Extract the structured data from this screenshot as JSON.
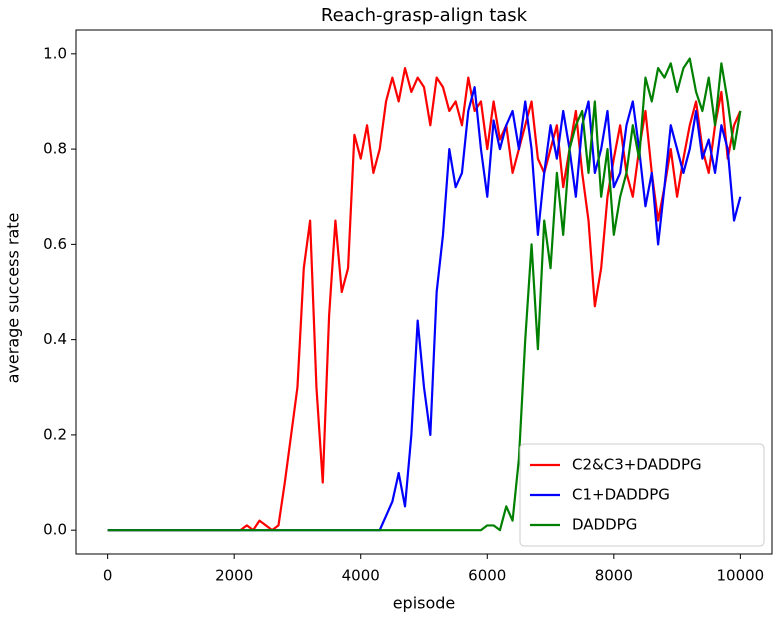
{
  "chart_data": {
    "type": "line",
    "title": "Reach-grasp-align task",
    "xlabel": "episode",
    "ylabel": "average success rate",
    "xlim": [
      -500,
      10500
    ],
    "ylim": [
      -0.05,
      1.05
    ],
    "xticks": [
      0,
      2000,
      4000,
      6000,
      8000,
      10000
    ],
    "yticks": [
      {
        "value": 0,
        "label": "0.0"
      },
      {
        "value": 0.2,
        "label": "0.2"
      },
      {
        "value": 0.4,
        "label": "0.4"
      },
      {
        "value": 0.6,
        "label": "0.6"
      },
      {
        "value": 0.8,
        "label": "0.8"
      },
      {
        "value": 1,
        "label": "1.0"
      }
    ],
    "legend": "lower right",
    "x": [
      0,
      100,
      200,
      300,
      400,
      500,
      600,
      700,
      800,
      900,
      1000,
      1100,
      1200,
      1300,
      1400,
      1500,
      1600,
      1700,
      1800,
      1900,
      2000,
      2100,
      2200,
      2300,
      2400,
      2500,
      2600,
      2700,
      2800,
      2900,
      3000,
      3100,
      3200,
      3300,
      3400,
      3500,
      3600,
      3700,
      3800,
      3900,
      4000,
      4100,
      4200,
      4300,
      4400,
      4500,
      4600,
      4700,
      4800,
      4900,
      5000,
      5100,
      5200,
      5300,
      5400,
      5500,
      5600,
      5700,
      5800,
      5900,
      6000,
      6100,
      6200,
      6300,
      6400,
      6500,
      6600,
      6700,
      6800,
      6900,
      7000,
      7100,
      7200,
      7300,
      7400,
      7500,
      7600,
      7700,
      7800,
      7900,
      8000,
      8100,
      8200,
      8300,
      8400,
      8500,
      8600,
      8700,
      8800,
      8900,
      9000,
      9100,
      9200,
      9300,
      9400,
      9500,
      9600,
      9700,
      9800,
      9900,
      10000
    ],
    "series": [
      {
        "name": "C2&C3+DADDPG",
        "color": "#ff0000",
        "values": [
          0,
          0,
          0,
          0,
          0,
          0,
          0,
          0,
          0,
          0,
          0,
          0,
          0,
          0,
          0,
          0,
          0,
          0,
          0,
          0,
          0,
          0,
          0.01,
          0,
          0.02,
          0.01,
          0,
          0.01,
          0.1,
          0.2,
          0.3,
          0.55,
          0.65,
          0.3,
          0.1,
          0.45,
          0.65,
          0.5,
          0.55,
          0.83,
          0.78,
          0.85,
          0.75,
          0.8,
          0.9,
          0.95,
          0.9,
          0.97,
          0.92,
          0.95,
          0.93,
          0.85,
          0.95,
          0.93,
          0.88,
          0.9,
          0.85,
          0.95,
          0.88,
          0.9,
          0.8,
          0.9,
          0.82,
          0.85,
          0.75,
          0.8,
          0.85,
          0.9,
          0.78,
          0.75,
          0.8,
          0.85,
          0.72,
          0.8,
          0.88,
          0.75,
          0.65,
          0.47,
          0.55,
          0.7,
          0.78,
          0.85,
          0.75,
          0.7,
          0.8,
          0.88,
          0.75,
          0.65,
          0.72,
          0.8,
          0.7,
          0.78,
          0.85,
          0.9,
          0.8,
          0.75,
          0.85,
          0.92,
          0.78,
          0.85,
          0.88
        ]
      },
      {
        "name": "C1+DADDPG",
        "color": "#0000ff",
        "values": [
          0,
          0,
          0,
          0,
          0,
          0,
          0,
          0,
          0,
          0,
          0,
          0,
          0,
          0,
          0,
          0,
          0,
          0,
          0,
          0,
          0,
          0,
          0,
          0,
          0,
          0,
          0,
          0,
          0,
          0,
          0,
          0,
          0,
          0,
          0,
          0,
          0,
          0,
          0,
          0,
          0,
          0,
          0,
          0,
          0.03,
          0.06,
          0.12,
          0.05,
          0.2,
          0.44,
          0.3,
          0.2,
          0.5,
          0.62,
          0.8,
          0.72,
          0.75,
          0.88,
          0.93,
          0.8,
          0.7,
          0.86,
          0.8,
          0.85,
          0.88,
          0.8,
          0.9,
          0.8,
          0.62,
          0.75,
          0.85,
          0.78,
          0.88,
          0.8,
          0.7,
          0.85,
          0.9,
          0.75,
          0.8,
          0.88,
          0.72,
          0.75,
          0.85,
          0.9,
          0.8,
          0.68,
          0.75,
          0.6,
          0.72,
          0.85,
          0.8,
          0.75,
          0.8,
          0.88,
          0.78,
          0.82,
          0.75,
          0.85,
          0.8,
          0.65,
          0.7
        ]
      },
      {
        "name": "DADDPG",
        "color": "#008000",
        "values": [
          0,
          0,
          0,
          0,
          0,
          0,
          0,
          0,
          0,
          0,
          0,
          0,
          0,
          0,
          0,
          0,
          0,
          0,
          0,
          0,
          0,
          0,
          0,
          0,
          0,
          0,
          0,
          0,
          0,
          0,
          0,
          0,
          0,
          0,
          0,
          0,
          0,
          0,
          0,
          0,
          0,
          0,
          0,
          0,
          0,
          0,
          0,
          0,
          0,
          0,
          0,
          0,
          0,
          0,
          0,
          0,
          0,
          0,
          0,
          0,
          0.01,
          0.01,
          0,
          0.05,
          0.02,
          0.15,
          0.4,
          0.6,
          0.38,
          0.65,
          0.55,
          0.75,
          0.62,
          0.8,
          0.85,
          0.88,
          0.75,
          0.9,
          0.7,
          0.8,
          0.62,
          0.7,
          0.75,
          0.85,
          0.78,
          0.95,
          0.9,
          0.97,
          0.95,
          0.98,
          0.92,
          0.97,
          0.99,
          0.92,
          0.88,
          0.95,
          0.85,
          0.98,
          0.9,
          0.8,
          0.88
        ]
      }
    ]
  }
}
